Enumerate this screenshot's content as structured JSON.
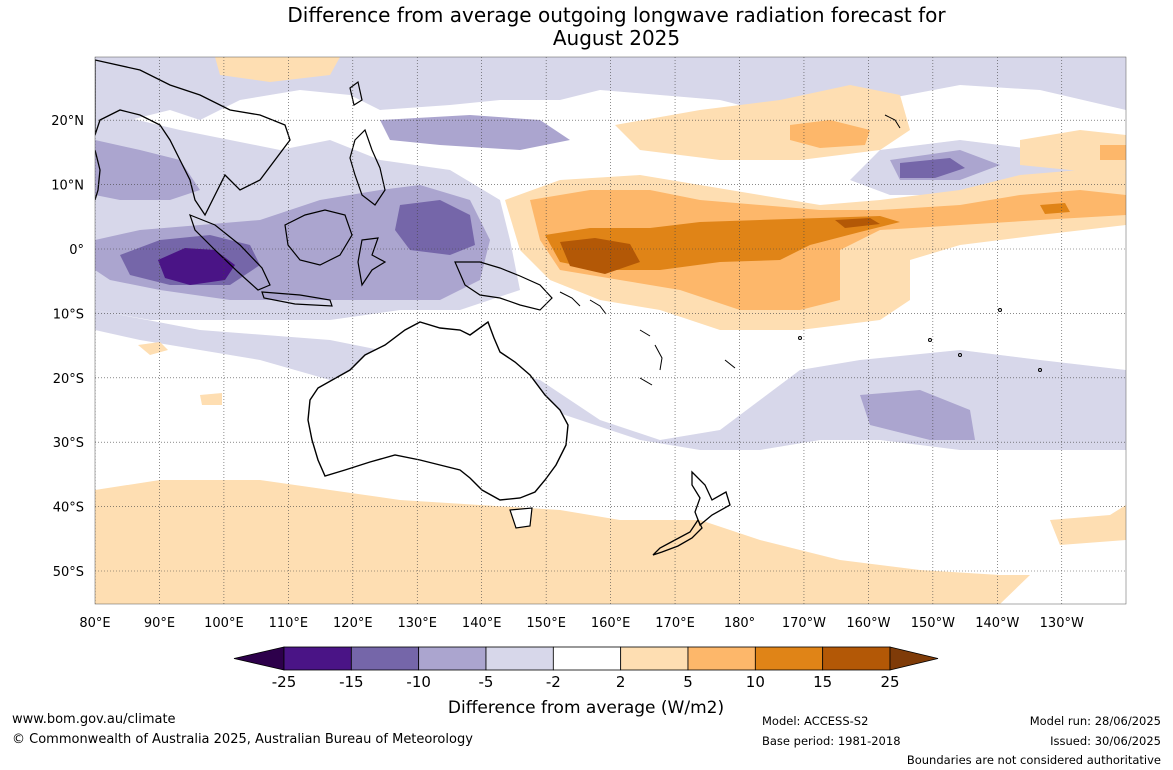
{
  "title": {
    "line1": "Difference from average outgoing longwave radiation forecast for",
    "line2": "August 2025"
  },
  "map": {
    "lon_labels": [
      "80°E",
      "90°E",
      "100°E",
      "110°E",
      "120°E",
      "130°E",
      "140°E",
      "150°E",
      "160°E",
      "170°E",
      "180°",
      "170°W",
      "160°W",
      "150°W",
      "140°W",
      "130°W"
    ],
    "lat_labels": [
      "20°N",
      "10°N",
      "0°",
      "10°S",
      "20°S",
      "30°S",
      "40°S",
      "50°S"
    ],
    "lat_values": [
      20,
      10,
      0,
      -10,
      -20,
      -30,
      -40,
      -50
    ],
    "lon_values": [
      80,
      90,
      100,
      110,
      120,
      130,
      140,
      150,
      160,
      170,
      180,
      190,
      200,
      210,
      220,
      230
    ]
  },
  "colorbar": {
    "tick_labels": [
      "-25",
      "-15",
      "-10",
      "-5",
      "-2",
      "2",
      "5",
      "10",
      "15",
      "25"
    ],
    "colors": [
      "#4a1486",
      "#7566a9",
      "#aba5cf",
      "#d7d7ea",
      "#ffffff",
      "#fedeb2",
      "#fdb76a",
      "#e08417",
      "#b35806",
      "#7f3b08"
    ],
    "below_color": "#2d004b",
    "label": "Difference from average (W/m2)"
  },
  "footer": {
    "website": "www.bom.gov.au/climate",
    "copyright": "© Commonwealth of Australia 2025, Australian Bureau of Meteorology",
    "model": "Model: ACCESS-S2",
    "base_period": "Base period: 1981-2018",
    "model_run": "Model run: 28/06/2025",
    "issued": "Issued: 30/06/2025",
    "boundaries": "Boundaries are not considered authoritative"
  }
}
